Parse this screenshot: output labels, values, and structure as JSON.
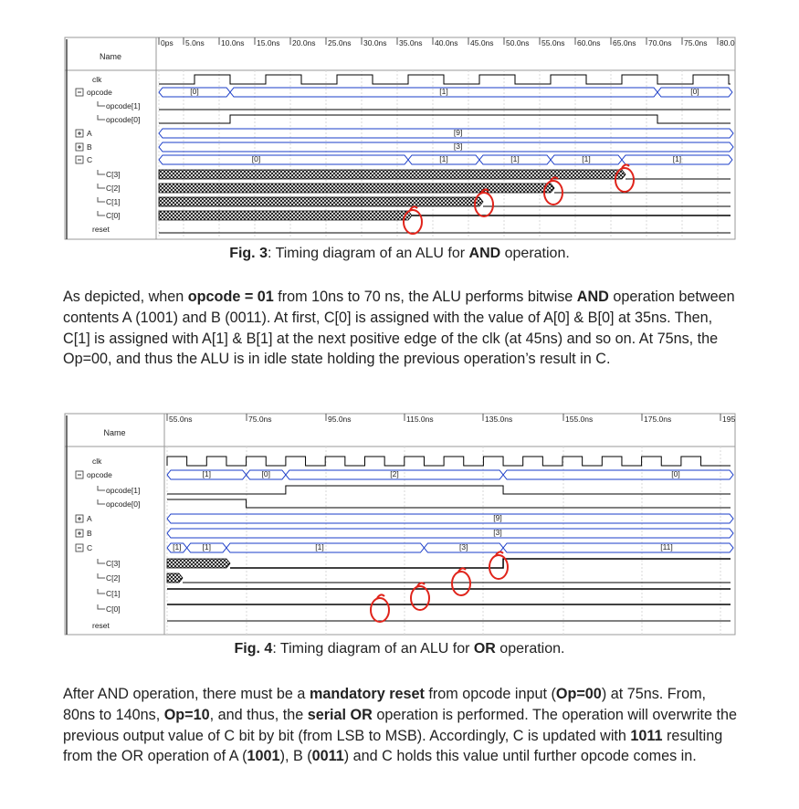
{
  "fig3": {
    "name_header": "Name",
    "time_ticks": [
      "0ps",
      "5.0ns",
      "10.0ns",
      "15.0ns",
      "20.0ns",
      "25.0ns",
      "30.0ns",
      "35.0ns",
      "40.0ns",
      "45.0ns",
      "50.0ns",
      "55.0ns",
      "60.0ns",
      "65.0ns",
      "70.0ns",
      "75.0ns",
      "80.0"
    ],
    "signals": [
      "clk",
      "opcode",
      "opcode[1]",
      "opcode[0]",
      "A",
      "B",
      "C",
      "C[3]",
      "C[2]",
      "C[1]",
      "C[0]",
      "reset"
    ],
    "bus_labels": {
      "opcode": [
        "[0]",
        "[1]",
        "[0]"
      ],
      "A": "[9]",
      "B": "[3]",
      "C": [
        "[0]",
        "[1]",
        "[1]",
        "[1]",
        "[1]"
      ]
    },
    "caption_prefix": "Fig. 3",
    "caption_mid": ": Timing diagram of an ALU for ",
    "caption_bold": "AND",
    "caption_suffix": " operation."
  },
  "para1": [
    {
      "t": "As depicted, when "
    },
    {
      "b": "opcode = 01"
    },
    {
      "t": " from 10ns to 70 ns, the ALU performs bitwise "
    },
    {
      "b": "AND"
    },
    {
      "t": " operation between contents A (1001) and B (0011). At first, C[0] is assigned with the value of A[0] & B[0] at 35ns. Then, C[1] is assigned with A[1] & B[1] at the next positive edge of the clk (at 45ns) and so on. At 75ns, the Op=00, and thus the ALU is in idle state holding the previous operation’s result in C."
    }
  ],
  "fig4": {
    "name_header": "Name",
    "time_ticks": [
      "55.0ns",
      "75.0ns",
      "95.0ns",
      "115.0ns",
      "135.0ns",
      "155.0ns",
      "175.0ns",
      "195"
    ],
    "signals": [
      "clk",
      "opcode",
      "opcode[1]",
      "opcode[0]",
      "A",
      "B",
      "C",
      "C[3]",
      "C[2]",
      "C[1]",
      "C[0]",
      "reset"
    ],
    "bus_labels": {
      "opcode": [
        "[1]",
        "[0]",
        "[2]",
        "[0]"
      ],
      "A": "[9]",
      "B": "[3]",
      "C": [
        "[1]",
        "[1]",
        "[1]",
        "[3]",
        "[11]"
      ]
    },
    "caption_prefix": "Fig. 4",
    "caption_mid": ": Timing diagram of an ALU for ",
    "caption_bold": "OR",
    "caption_suffix": " operation."
  },
  "para2": [
    {
      "t": "After AND operation, there must be a "
    },
    {
      "b": "mandatory reset"
    },
    {
      "t": " from opcode input ("
    },
    {
      "b": "Op=00"
    },
    {
      "t": ") at 75ns. From, 80ns to 140ns, "
    },
    {
      "b": "Op=10"
    },
    {
      "t": ", and thus, the "
    },
    {
      "b": "serial OR"
    },
    {
      "t": " operation is performed. The operation will overwrite the previous output value of C bit by bit (from LSB to MSB). Accordingly, C is updated with "
    },
    {
      "b": "1011"
    },
    {
      "t": " resulting from the OR operation of A ("
    },
    {
      "b": "1001"
    },
    {
      "t": "), B ("
    },
    {
      "b": "0011"
    },
    {
      "t": ") and C holds this value until further opcode comes in."
    }
  ],
  "colors": {
    "wave_line": "#000000",
    "bus_line": "#1a3cc8",
    "annotation": "#e0241b",
    "grid": "#d8d8d8"
  }
}
